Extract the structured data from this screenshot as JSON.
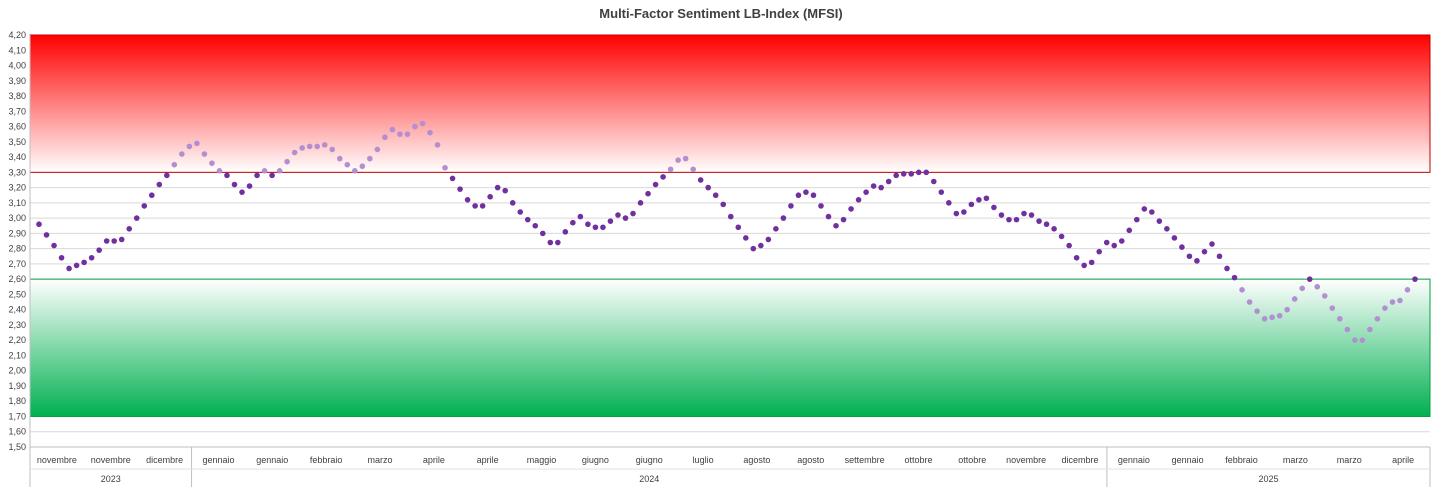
{
  "chart_data": {
    "type": "scatter",
    "title": "Multi-Factor Sentiment LB-Index (MFSI)",
    "xlabel": "",
    "ylabel": "",
    "ylim": [
      1.5,
      4.2
    ],
    "ystep": 0.1,
    "grid": true,
    "legend": "none",
    "bands": [
      {
        "name": "",
        "from": 3.3,
        "to": 4.2,
        "color_strong": "#ff0000",
        "color_light": "#ffffff",
        "border": "#c00000"
      },
      {
        "name": "",
        "from": 1.7,
        "to": 2.6,
        "color_strong": "#00b050",
        "color_light": "#ffffff",
        "border": "#00a040"
      }
    ],
    "point_colors": {
      "normal": "#7030a0",
      "extreme": "#b38fd1"
    },
    "month_labels": [
      "novembre",
      "novembre",
      "dicembre",
      "gennaio",
      "gennaio",
      "febbraio",
      "marzo",
      "aprile",
      "aprile",
      "maggio",
      "giugno",
      "giugno",
      "luglio",
      "agosto",
      "agosto",
      "settembre",
      "ottobre",
      "ottobre",
      "novembre",
      "dicembre",
      "gennaio",
      "gennaio",
      "febbraio",
      "marzo",
      "marzo",
      "aprile"
    ],
    "year_groups": [
      {
        "label": "2023",
        "from": 0,
        "to": 2
      },
      {
        "label": "2024",
        "from": 3,
        "to": 19
      },
      {
        "label": "2025",
        "from": 20,
        "to": 25
      }
    ],
    "values": [
      2.96,
      2.89,
      2.82,
      2.74,
      2.67,
      2.69,
      2.71,
      2.74,
      2.79,
      2.85,
      2.85,
      2.86,
      2.93,
      3.0,
      3.08,
      3.15,
      3.22,
      3.28,
      3.35,
      3.42,
      3.47,
      3.49,
      3.42,
      3.36,
      3.31,
      3.28,
      3.22,
      3.17,
      3.21,
      3.28,
      3.31,
      3.28,
      3.31,
      3.37,
      3.43,
      3.46,
      3.47,
      3.47,
      3.48,
      3.45,
      3.39,
      3.35,
      3.31,
      3.34,
      3.39,
      3.45,
      3.53,
      3.58,
      3.55,
      3.55,
      3.6,
      3.62,
      3.56,
      3.48,
      3.33,
      3.26,
      3.19,
      3.12,
      3.08,
      3.08,
      3.14,
      3.2,
      3.18,
      3.1,
      3.04,
      2.99,
      2.95,
      2.9,
      2.84,
      2.84,
      2.91,
      2.97,
      3.01,
      2.96,
      2.94,
      2.94,
      2.98,
      3.02,
      3.0,
      3.03,
      3.1,
      3.16,
      3.22,
      3.27,
      3.32,
      3.38,
      3.39,
      3.32,
      3.25,
      3.2,
      3.15,
      3.09,
      3.01,
      2.94,
      2.87,
      2.8,
      2.82,
      2.86,
      2.93,
      3.0,
      3.08,
      3.15,
      3.17,
      3.15,
      3.08,
      3.01,
      2.95,
      2.99,
      3.06,
      3.12,
      3.17,
      3.21,
      3.2,
      3.24,
      3.28,
      3.29,
      3.29,
      3.3,
      3.3,
      3.24,
      3.17,
      3.1,
      3.03,
      3.04,
      3.09,
      3.12,
      3.13,
      3.07,
      3.02,
      2.99,
      2.99,
      3.03,
      3.02,
      2.98,
      2.96,
      2.93,
      2.88,
      2.82,
      2.74,
      2.69,
      2.71,
      2.78,
      2.84,
      2.82,
      2.85,
      2.92,
      2.99,
      3.06,
      3.04,
      2.98,
      2.93,
      2.87,
      2.81,
      2.75,
      2.72,
      2.78,
      2.83,
      2.75,
      2.67,
      2.61,
      2.53,
      2.45,
      2.39,
      2.34,
      2.35,
      2.36,
      2.4,
      2.47,
      2.54,
      2.6,
      2.55,
      2.49,
      2.41,
      2.34,
      2.27,
      2.2,
      2.2,
      2.27,
      2.34,
      2.41,
      2.45,
      2.46,
      2.53,
      2.6
    ]
  }
}
